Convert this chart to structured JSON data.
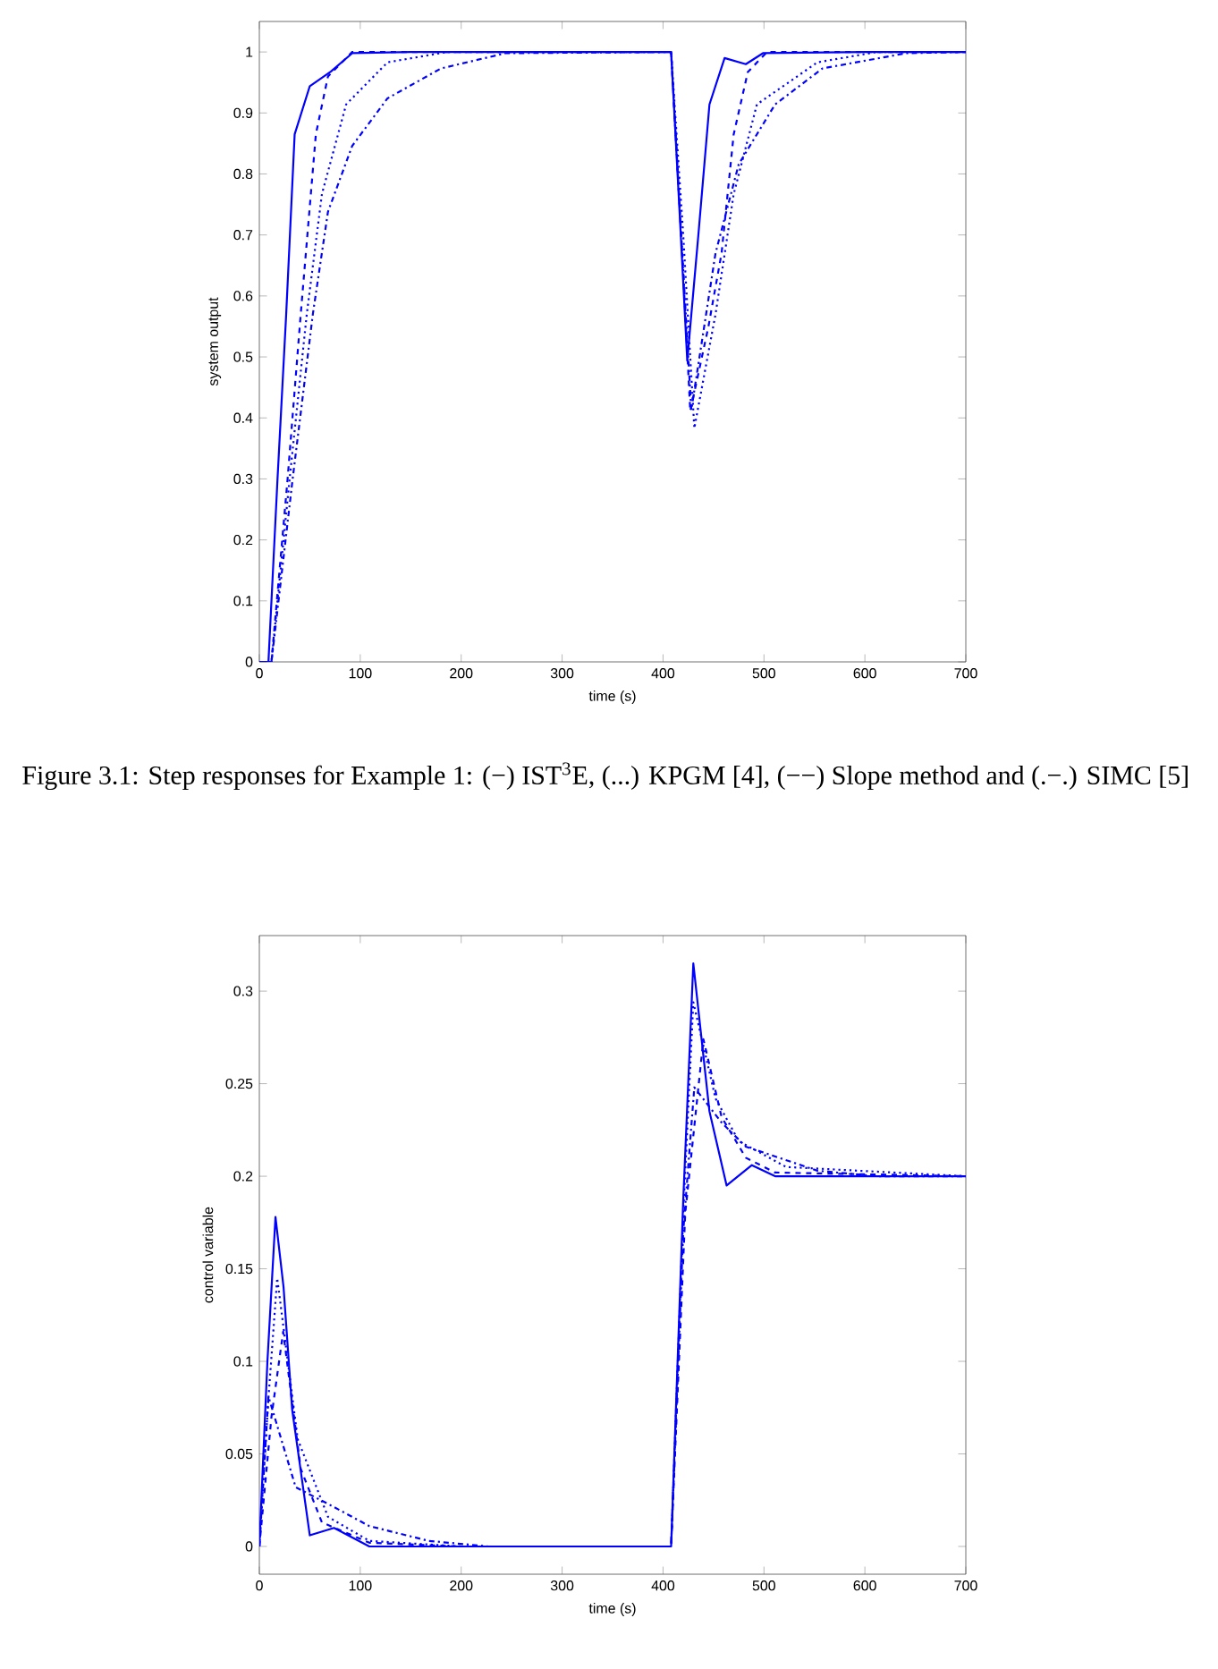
{
  "chart_data": [
    {
      "type": "line",
      "xlabel": "time (s)",
      "ylabel": "system output",
      "xlim": [
        0,
        700
      ],
      "ylim": [
        0,
        1.05
      ],
      "xticks": [
        0,
        100,
        200,
        300,
        400,
        500,
        600,
        700
      ],
      "yticks": [
        0,
        0.1,
        0.2,
        0.3,
        0.4,
        0.5,
        0.6,
        0.7,
        0.8,
        0.9,
        1
      ],
      "annotations": [
        "Figure 3.1: Step responses for Example 1: (−) IST$^{3}$E, (...) KPGM [4], (−−) Slope method and (.−.) SIMC [5]"
      ],
      "series": [
        {
          "color": "#0000ff",
          "line_style": "solid",
          "x": [
            0,
            9,
            18,
            26.6,
            35,
            50,
            71,
            92,
            150,
            408,
            416,
            424,
            435,
            446,
            461,
            482,
            499,
            600,
            700
          ],
          "values": [
            0,
            0,
            0.3,
            0.57,
            0.865,
            0.944,
            0.968,
            0.998,
            1,
            1,
            0.75,
            0.494,
            0.7,
            0.914,
            0.99,
            0.98,
            0.998,
            1,
            1
          ]
        },
        {
          "color": "#0000ff",
          "line_style": "dotted",
          "x": [
            0,
            12,
            30,
            47,
            62,
            86,
            127,
            186,
            300,
            408,
            420,
            431,
            452,
            470,
            493,
            553,
            612,
            700
          ],
          "values": [
            0,
            0,
            0.3,
            0.57,
            0.767,
            0.914,
            0.983,
            1,
            1,
            1,
            0.7,
            0.383,
            0.57,
            0.767,
            0.914,
            0.983,
            1,
            1
          ]
        },
        {
          "color": "#0000ff",
          "line_style": "dashed",
          "x": [
            0,
            12,
            28,
            41,
            56,
            68,
            92,
            150,
            408,
            418,
            427,
            445,
            458,
            470,
            484,
            503,
            600,
            700
          ],
          "values": [
            0,
            0,
            0.3,
            0.57,
            0.865,
            0.96,
            1,
            1,
            1,
            0.7,
            0.411,
            0.55,
            0.67,
            0.865,
            0.967,
            1,
            1,
            1
          ]
        },
        {
          "color": "#0000ff",
          "line_style": "dashdot",
          "x": [
            0,
            12,
            33,
            53,
            68,
            92,
            127,
            180,
            244,
            408,
            418,
            428,
            452,
            475,
            511,
            558,
            641,
            700
          ],
          "values": [
            0,
            0,
            0.3,
            0.57,
            0.738,
            0.846,
            0.924,
            0.973,
            0.998,
            1,
            0.7,
            0.413,
            0.67,
            0.816,
            0.914,
            0.973,
            0.998,
            1
          ]
        }
      ]
    },
    {
      "type": "line",
      "xlabel": "time (s)",
      "ylabel": "control variable",
      "xlim": [
        0,
        700
      ],
      "ylim": [
        -0.015,
        0.33
      ],
      "xticks": [
        0,
        100,
        200,
        300,
        400,
        500,
        600,
        700
      ],
      "yticks": [
        0,
        0.05,
        0.1,
        0.15,
        0.2,
        0.25,
        0.3
      ],
      "series": [
        {
          "color": "#0000ff",
          "line_style": "solid",
          "x": [
            0,
            8,
            16,
            24,
            32.5,
            50,
            74,
            109,
            408,
            420,
            430,
            446,
            463,
            488,
            511,
            700
          ],
          "values": [
            0,
            0.1,
            0.178,
            0.14,
            0.074,
            0.006,
            0.01,
            0,
            0,
            0.187,
            0.315,
            0.235,
            0.195,
            0.206,
            0.2,
            0.2
          ]
        },
        {
          "color": "#0000ff",
          "line_style": "dotted",
          "x": [
            0,
            9,
            17.7,
            38,
            68,
            109,
            200,
            408,
            420,
            430,
            452,
            475,
            522,
            700
          ],
          "values": [
            0,
            0.08,
            0.145,
            0.058,
            0.016,
            0.003,
            0,
            0,
            0.18,
            0.294,
            0.242,
            0.219,
            0.205,
            0.2
          ]
        },
        {
          "color": "#0000ff",
          "line_style": "dashed",
          "x": [
            0,
            12,
            23.6,
            41,
            62,
            109,
            200,
            408,
            422,
            440,
            458,
            482,
            511,
            700
          ],
          "values": [
            0,
            0.07,
            0.116,
            0.042,
            0.013,
            0.002,
            0,
            0,
            0.18,
            0.274,
            0.232,
            0.21,
            0.202,
            0.2
          ]
        },
        {
          "color": "#0000ff",
          "line_style": "dashdot",
          "x": [
            0,
            9,
            36,
            68,
            109,
            168,
            227,
            408,
            420,
            431,
            458,
            482,
            553,
            612,
            700
          ],
          "values": [
            0,
            0.081,
            0.032,
            0.023,
            0.011,
            0.003,
            0,
            0,
            0.17,
            0.248,
            0.229,
            0.216,
            0.203,
            0.2,
            0.2
          ]
        }
      ]
    }
  ]
}
